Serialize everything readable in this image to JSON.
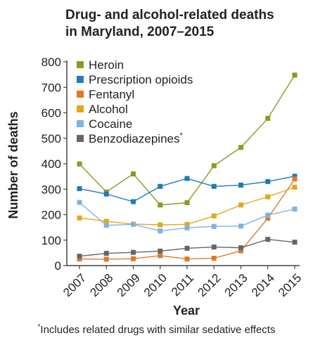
{
  "chart_data": {
    "type": "line",
    "title_lines": [
      "Drug- and alcohol-related deaths",
      "in Maryland, 2007–2015"
    ],
    "xlabel": "Year",
    "ylabel": "Number of deaths",
    "x": [
      "2007",
      "2008",
      "2009",
      "2010",
      "2011",
      "2012",
      "2013",
      "2014",
      "2015"
    ],
    "ylim": [
      0,
      800
    ],
    "yticks": [
      "0",
      "100",
      "200",
      "300",
      "400",
      "500",
      "600",
      "700",
      "800"
    ],
    "grid": false,
    "legend_position": "top-left",
    "series": [
      {
        "name": "Heroin",
        "color": "#8a9a1e",
        "values": [
          399,
          289,
          360,
          238,
          247,
          392,
          464,
          578,
          748
        ]
      },
      {
        "name": "Prescription opioids",
        "color": "#1f7ab8",
        "values": [
          302,
          281,
          251,
          311,
          342,
          311,
          316,
          330,
          351
        ]
      },
      {
        "name": "Fentanyl",
        "color": "#e07a2a",
        "values": [
          26,
          25,
          27,
          39,
          26,
          29,
          58,
          186,
          340
        ]
      },
      {
        "name": "Alcohol",
        "color": "#e1a81f",
        "values": [
          187,
          174,
          163,
          160,
          162,
          195,
          238,
          270,
          308
        ]
      },
      {
        "name": "Cocaine",
        "color": "#7fb3e0",
        "values": [
          248,
          158,
          162,
          136,
          148,
          154,
          155,
          198,
          222
        ]
      },
      {
        "name": "Benzodiazepines",
        "name_suffix": "*",
        "color": "#666666",
        "values": [
          37,
          48,
          52,
          57,
          68,
          73,
          70,
          103,
          92
        ]
      }
    ]
  },
  "footnote": {
    "marker": "*",
    "text": "Includes related drugs with similar sedative effects"
  }
}
